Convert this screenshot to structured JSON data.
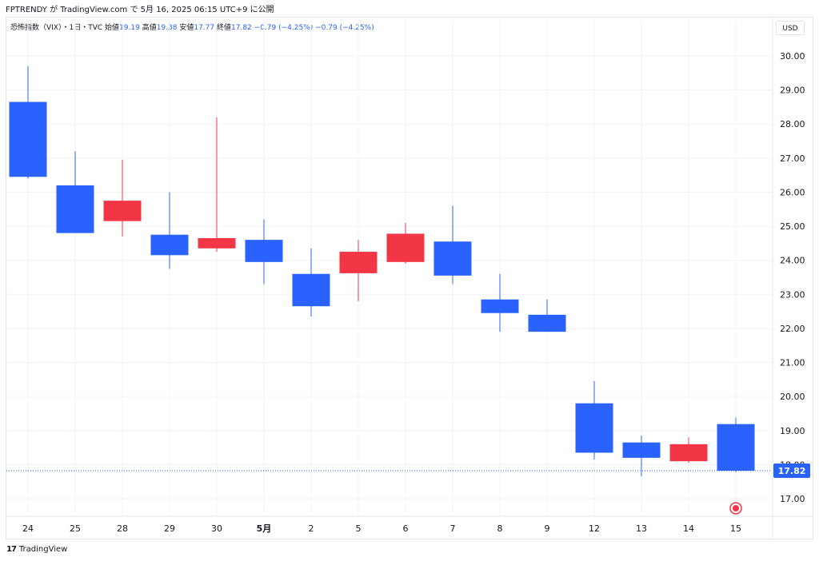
{
  "header": {
    "publisher_line": "FPTRENDY が TradingView.com で 5月 16, 2025 06:15 UTC+9 に公開"
  },
  "legend": {
    "symbol": "恐怖指数（VIX）・1日・TVC",
    "open_label": "始値",
    "open_value": "19.19",
    "high_label": "高値",
    "high_value": "19.38",
    "low_label": "安値",
    "low_value": "17.77",
    "close_label": "終値",
    "close_value": "17.82",
    "change_1": "−0.79 (−4.25%)",
    "change_2": "−0.79 (−4.25%)"
  },
  "currency_button": "USD",
  "footer": {
    "brand": "TradingView",
    "logo_mark": "17"
  },
  "colors": {
    "up": "#f23645",
    "down": "#2962ff",
    "grid": "#f0f3fa",
    "last_price_line": "#2962ff"
  },
  "chart_data": {
    "type": "candlestick",
    "x_labels": [
      "24",
      "25",
      "28",
      "29",
      "30",
      "5月",
      "2",
      "5",
      "6",
      "7",
      "8",
      "9",
      "12",
      "13",
      "14",
      "15"
    ],
    "bold_labels": [
      "5月"
    ],
    "open": [
      28.65,
      26.2,
      25.15,
      24.75,
      24.35,
      24.6,
      23.6,
      23.62,
      23.95,
      24.55,
      22.85,
      22.4,
      19.8,
      18.65,
      18.1,
      19.19
    ],
    "high": [
      29.7,
      27.2,
      26.95,
      26.0,
      28.2,
      25.2,
      24.35,
      24.6,
      25.1,
      25.6,
      23.6,
      22.85,
      20.45,
      18.85,
      18.8,
      19.38
    ],
    "low": [
      26.4,
      24.8,
      24.7,
      23.75,
      24.25,
      23.3,
      22.35,
      22.8,
      23.9,
      23.3,
      21.9,
      21.9,
      18.15,
      17.65,
      18.05,
      17.77
    ],
    "close": [
      26.45,
      24.8,
      25.75,
      24.15,
      24.65,
      23.95,
      22.65,
      24.25,
      24.78,
      23.55,
      22.45,
      21.9,
      18.35,
      18.2,
      18.6,
      17.82
    ],
    "y_ticks": [
      "17.00",
      "18.00",
      "19.00",
      "20.00",
      "21.00",
      "22.00",
      "23.00",
      "24.00",
      "25.00",
      "26.00",
      "27.00",
      "28.00",
      "29.00",
      "30.00"
    ],
    "ylim": [
      16.4,
      30.6
    ],
    "last_price": "17.82"
  }
}
